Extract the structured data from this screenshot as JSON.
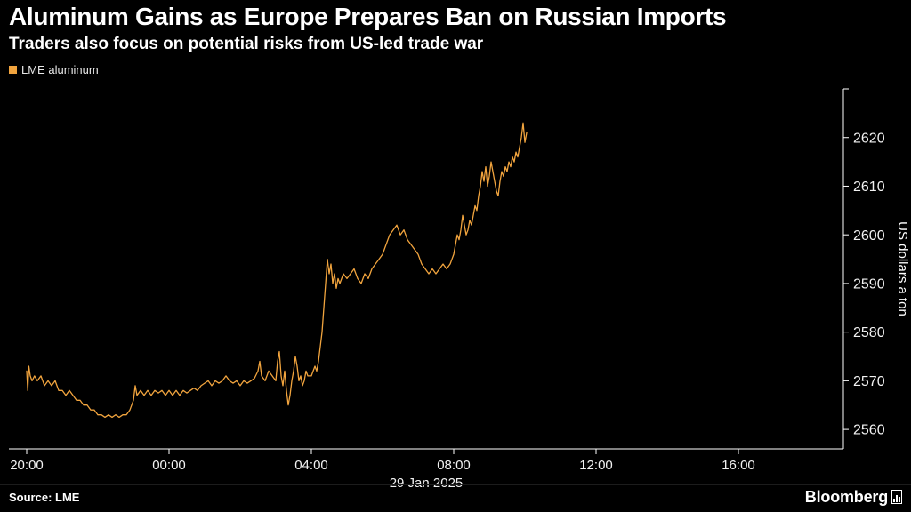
{
  "header": {
    "title": "Aluminum Gains as Europe Prepares Ban on Russian Imports",
    "subtitle": "Traders also focus on potential risks from US-led trade war"
  },
  "legend": {
    "label": "LME aluminum"
  },
  "footer": {
    "source": "Source: LME",
    "brand": "Bloomberg"
  },
  "colors": {
    "background": "#000000",
    "line": "#f1a43e",
    "axis": "#ffffff",
    "tick_text": "#f2f2f2",
    "axis_label_text": "#ffffff"
  },
  "chart_data": {
    "type": "line",
    "title": "Aluminum Gains as Europe Prepares Ban on Russian Imports",
    "subtitle": "Traders also focus on potential risks from US-led trade war",
    "x_unit": "hours elapsed since 20:00 (evening before 29 Jan 2025)",
    "x_domain": [
      0,
      23
    ],
    "x_ticks": [
      {
        "t": 0,
        "label": "20:00"
      },
      {
        "t": 4,
        "label": "00:00"
      },
      {
        "t": 8,
        "label": "04:00"
      },
      {
        "t": 12,
        "label": "08:00"
      },
      {
        "t": 16,
        "label": "12:00"
      },
      {
        "t": 20,
        "label": "16:00"
      }
    ],
    "x_axis_annotation": "29 Jan 2025",
    "y_domain": [
      2556,
      2630
    ],
    "y_ticks": [
      2560,
      2570,
      2580,
      2590,
      2600,
      2610,
      2620
    ],
    "ylabel": "US dollars a ton",
    "grid": false,
    "legend_position": "top-left",
    "axis_side": "right",
    "series": [
      {
        "name": "LME aluminum",
        "color": "#f1a43e",
        "points": [
          [
            0.0,
            2572
          ],
          [
            0.03,
            2568
          ],
          [
            0.06,
            2573
          ],
          [
            0.1,
            2571
          ],
          [
            0.15,
            2570
          ],
          [
            0.22,
            2571
          ],
          [
            0.3,
            2570
          ],
          [
            0.4,
            2571
          ],
          [
            0.5,
            2569
          ],
          [
            0.6,
            2570
          ],
          [
            0.7,
            2569
          ],
          [
            0.8,
            2570
          ],
          [
            0.9,
            2568
          ],
          [
            1.0,
            2568
          ],
          [
            1.1,
            2567
          ],
          [
            1.2,
            2568
          ],
          [
            1.3,
            2567
          ],
          [
            1.4,
            2566
          ],
          [
            1.5,
            2566
          ],
          [
            1.6,
            2565
          ],
          [
            1.7,
            2565
          ],
          [
            1.8,
            2564
          ],
          [
            1.9,
            2564
          ],
          [
            2.0,
            2563
          ],
          [
            2.1,
            2563
          ],
          [
            2.2,
            2562.5
          ],
          [
            2.3,
            2563
          ],
          [
            2.4,
            2562.5
          ],
          [
            2.5,
            2563
          ],
          [
            2.6,
            2562.5
          ],
          [
            2.7,
            2563
          ],
          [
            2.8,
            2563
          ],
          [
            2.9,
            2564
          ],
          [
            3.0,
            2566
          ],
          [
            3.05,
            2569
          ],
          [
            3.1,
            2567
          ],
          [
            3.2,
            2568
          ],
          [
            3.3,
            2567
          ],
          [
            3.4,
            2568
          ],
          [
            3.5,
            2567
          ],
          [
            3.6,
            2568
          ],
          [
            3.7,
            2567.5
          ],
          [
            3.8,
            2568
          ],
          [
            3.9,
            2567
          ],
          [
            4.0,
            2568
          ],
          [
            4.1,
            2567
          ],
          [
            4.2,
            2568
          ],
          [
            4.3,
            2567
          ],
          [
            4.4,
            2568
          ],
          [
            4.5,
            2567.5
          ],
          [
            4.6,
            2568
          ],
          [
            4.7,
            2568.5
          ],
          [
            4.8,
            2568
          ],
          [
            4.9,
            2569
          ],
          [
            5.0,
            2569.5
          ],
          [
            5.1,
            2570
          ],
          [
            5.2,
            2569
          ],
          [
            5.3,
            2570
          ],
          [
            5.4,
            2569.5
          ],
          [
            5.5,
            2570
          ],
          [
            5.6,
            2571
          ],
          [
            5.7,
            2570
          ],
          [
            5.8,
            2569.5
          ],
          [
            5.9,
            2570
          ],
          [
            6.0,
            2569
          ],
          [
            6.1,
            2570
          ],
          [
            6.2,
            2569.5
          ],
          [
            6.3,
            2570
          ],
          [
            6.4,
            2570.5
          ],
          [
            6.5,
            2572
          ],
          [
            6.55,
            2574
          ],
          [
            6.6,
            2571
          ],
          [
            6.7,
            2570
          ],
          [
            6.8,
            2572
          ],
          [
            6.9,
            2571
          ],
          [
            7.0,
            2570
          ],
          [
            7.05,
            2574
          ],
          [
            7.1,
            2576
          ],
          [
            7.15,
            2571
          ],
          [
            7.2,
            2569
          ],
          [
            7.25,
            2572
          ],
          [
            7.3,
            2568
          ],
          [
            7.35,
            2565
          ],
          [
            7.4,
            2567
          ],
          [
            7.45,
            2570
          ],
          [
            7.5,
            2572
          ],
          [
            7.55,
            2575
          ],
          [
            7.6,
            2573
          ],
          [
            7.65,
            2570
          ],
          [
            7.7,
            2571
          ],
          [
            7.75,
            2569
          ],
          [
            7.8,
            2570
          ],
          [
            7.85,
            2572
          ],
          [
            7.9,
            2571
          ],
          [
            8.0,
            2571
          ],
          [
            8.05,
            2572
          ],
          [
            8.1,
            2573
          ],
          [
            8.15,
            2572
          ],
          [
            8.2,
            2574
          ],
          [
            8.25,
            2577
          ],
          [
            8.3,
            2580
          ],
          [
            8.35,
            2585
          ],
          [
            8.4,
            2590
          ],
          [
            8.45,
            2595
          ],
          [
            8.5,
            2592
          ],
          [
            8.55,
            2594
          ],
          [
            8.6,
            2590
          ],
          [
            8.65,
            2592
          ],
          [
            8.7,
            2589
          ],
          [
            8.75,
            2591
          ],
          [
            8.8,
            2590
          ],
          [
            8.9,
            2592
          ],
          [
            9.0,
            2591
          ],
          [
            9.1,
            2592
          ],
          [
            9.2,
            2593
          ],
          [
            9.3,
            2591
          ],
          [
            9.4,
            2590
          ],
          [
            9.5,
            2592
          ],
          [
            9.6,
            2591
          ],
          [
            9.7,
            2593
          ],
          [
            9.8,
            2594
          ],
          [
            9.9,
            2595
          ],
          [
            10.0,
            2596
          ],
          [
            10.1,
            2598
          ],
          [
            10.2,
            2600
          ],
          [
            10.3,
            2601
          ],
          [
            10.4,
            2602
          ],
          [
            10.5,
            2600
          ],
          [
            10.6,
            2601
          ],
          [
            10.7,
            2599
          ],
          [
            10.8,
            2598
          ],
          [
            10.9,
            2597
          ],
          [
            11.0,
            2596
          ],
          [
            11.1,
            2594
          ],
          [
            11.2,
            2593
          ],
          [
            11.3,
            2592
          ],
          [
            11.4,
            2593
          ],
          [
            11.5,
            2592
          ],
          [
            11.6,
            2593
          ],
          [
            11.7,
            2594
          ],
          [
            11.8,
            2593
          ],
          [
            11.9,
            2594
          ],
          [
            12.0,
            2596
          ],
          [
            12.05,
            2598
          ],
          [
            12.1,
            2600
          ],
          [
            12.15,
            2599
          ],
          [
            12.2,
            2601
          ],
          [
            12.25,
            2604
          ],
          [
            12.3,
            2602
          ],
          [
            12.35,
            2600
          ],
          [
            12.4,
            2601
          ],
          [
            12.45,
            2603
          ],
          [
            12.5,
            2602
          ],
          [
            12.55,
            2604
          ],
          [
            12.6,
            2606
          ],
          [
            12.65,
            2605
          ],
          [
            12.7,
            2608
          ],
          [
            12.75,
            2610
          ],
          [
            12.8,
            2613
          ],
          [
            12.85,
            2611
          ],
          [
            12.9,
            2614
          ],
          [
            12.95,
            2610
          ],
          [
            13.0,
            2612
          ],
          [
            13.05,
            2615
          ],
          [
            13.1,
            2613
          ],
          [
            13.15,
            2611
          ],
          [
            13.2,
            2609
          ],
          [
            13.25,
            2608
          ],
          [
            13.3,
            2611
          ],
          [
            13.35,
            2613
          ],
          [
            13.4,
            2612
          ],
          [
            13.45,
            2614
          ],
          [
            13.5,
            2613
          ],
          [
            13.55,
            2615
          ],
          [
            13.6,
            2614
          ],
          [
            13.65,
            2616
          ],
          [
            13.7,
            2615
          ],
          [
            13.75,
            2617
          ],
          [
            13.8,
            2616
          ],
          [
            13.85,
            2618
          ],
          [
            13.9,
            2620
          ],
          [
            13.95,
            2623
          ],
          [
            14.0,
            2619
          ],
          [
            14.05,
            2621
          ]
        ]
      }
    ]
  }
}
